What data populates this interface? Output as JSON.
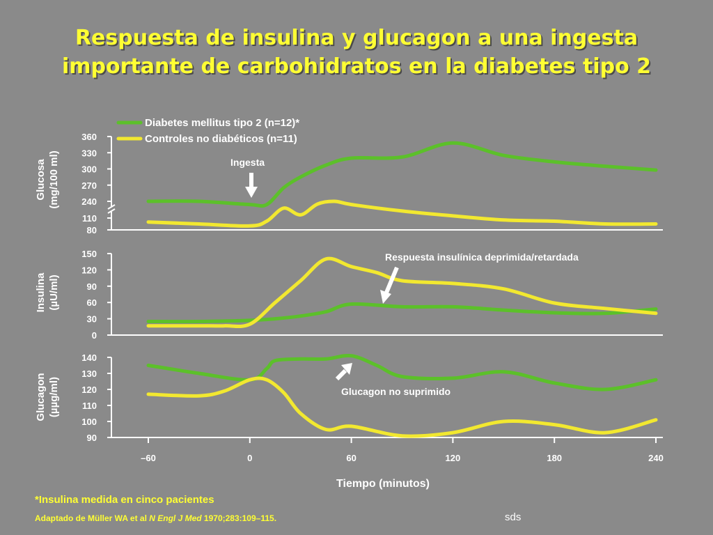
{
  "title_line1": "Respuesta de insulina y glucagon a una ingesta",
  "title_line2": "importante de carbohidratos en la diabetes tipo 2",
  "colors": {
    "background": "#8a8a8a",
    "diabetes": "#5cc02a",
    "control": "#f2e830",
    "title": "#ffff33"
  },
  "chart_data": {
    "type": "line",
    "x_label": "Tiempo  (minutos)",
    "x_ticks": [
      "–60",
      "0",
      "60",
      "120",
      "180",
      "240"
    ],
    "x_range": [
      -60,
      240
    ],
    "legend": {
      "diabetes": "Diabetes mellitus tipo 2 (n=12)*",
      "control": "Controles no diabéticos (n=11)"
    },
    "annotations": {
      "ingesta": "Ingesta",
      "insulin": "Respuesta insulínica deprimida/retardada",
      "glucagon": "Glucagon no suprimido"
    },
    "panels": [
      {
        "name": "glucosa",
        "ylabel_line1": "Glucosa",
        "ylabel_line2": "(mg/100 ml)",
        "y_ticks": [
          "360",
          "330",
          "300",
          "270",
          "240",
          "110",
          "80"
        ],
        "axis_break": "between 240 and 110",
        "series": [
          {
            "key": "diabetes",
            "x": [
              -60,
              -30,
              0,
              10,
              20,
              30,
              45,
              60,
              90,
              120,
              150,
              180,
              210,
              240
            ],
            "y": [
              240,
              240,
              234,
              234,
              265,
              285,
              307,
              320,
              322,
              348,
              325,
              313,
              305,
              298
            ]
          },
          {
            "key": "control",
            "x": [
              -60,
              -30,
              0,
              10,
              20,
              30,
              40,
              50,
              60,
              90,
              120,
              150,
              180,
              210,
              240
            ],
            "y": [
              100,
              95,
              90,
              102,
              135,
              215,
              235,
              240,
              234,
              222,
              213,
              105,
              102,
              95,
              95
            ]
          }
        ]
      },
      {
        "name": "insulina",
        "ylabel_line1": "Insulina",
        "ylabel_line2": "(µU/ml)",
        "y_ticks": [
          "150",
          "120",
          "90",
          "60",
          "30",
          "0"
        ],
        "y_range": [
          0,
          150
        ],
        "series": [
          {
            "key": "diabetes",
            "x": [
              -60,
              -30,
              0,
              15,
              30,
              45,
              60,
              90,
              120,
              150,
              180,
              210,
              240
            ],
            "y": [
              25,
              25,
              27,
              30,
              35,
              43,
              57,
              52,
              52,
              46,
              41,
              40,
              48
            ]
          },
          {
            "key": "control",
            "x": [
              -60,
              -30,
              -15,
              0,
              15,
              30,
              45,
              60,
              75,
              90,
              120,
              150,
              180,
              210,
              240
            ],
            "y": [
              17,
              17,
              17,
              20,
              60,
              100,
              140,
              126,
              115,
              100,
              95,
              85,
              59,
              49,
              40
            ]
          }
        ]
      },
      {
        "name": "glucagon",
        "ylabel_line1": "Glucagon",
        "ylabel_line2": "(µµg/ml)",
        "y_ticks": [
          "140",
          "130",
          "120",
          "110",
          "100",
          "90"
        ],
        "y_range": [
          90,
          140
        ],
        "series": [
          {
            "key": "diabetes",
            "x": [
              -60,
              -30,
              0,
              10,
              15,
              30,
              45,
              60,
              75,
              90,
              120,
              150,
              180,
              210,
              240
            ],
            "y": [
              135,
              130,
              126,
              133,
              138,
              139,
              139,
              141,
              135,
              128,
              127,
              131,
              124,
              120,
              126
            ]
          },
          {
            "key": "control",
            "x": [
              -60,
              -30,
              -15,
              0,
              10,
              20,
              30,
              45,
              60,
              90,
              120,
              150,
              180,
              210,
              240
            ],
            "y": [
              117,
              116,
              119,
              126,
              126,
              118,
              105,
              95,
              97,
              91,
              93,
              100,
              98,
              93,
              101
            ]
          }
        ]
      }
    ]
  },
  "footnote": "*Insulina medida en cinco pacientes",
  "citation_pre": "Adaptado de Müller WA et al ",
  "citation_journal": "N Engl J Med",
  "citation_post": " 1970;283:109–115.",
  "watermark": "sds"
}
